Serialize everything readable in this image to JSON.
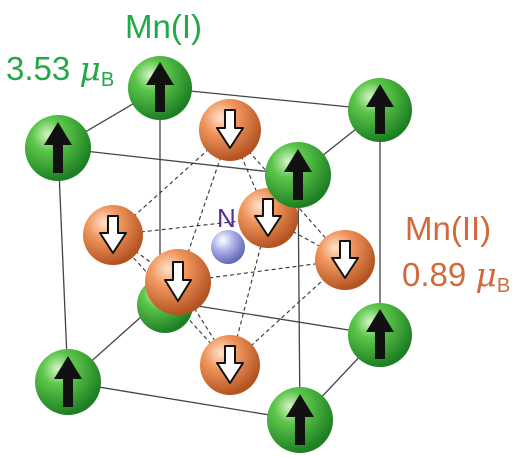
{
  "labels": {
    "mn1_name": "Mn(I)",
    "mn1_moment_value": "3.53",
    "mn1_moment_symbol": "μ",
    "mn1_moment_sub": "B",
    "mn2_name": "Mn(II)",
    "mn2_moment_value": "0.89",
    "mn2_moment_symbol": "μ",
    "mn2_moment_sub": "B",
    "n_atom": "N"
  },
  "colors": {
    "mn1": "#2fae3c",
    "mn2": "#e8864e",
    "n": "#8f93d6",
    "mn1_text": "#21a945",
    "mn2_text": "#d06a3a",
    "n_text": "#5a2a9a"
  },
  "atoms": {
    "corner_mn1_spin": "up",
    "face_mn2_spin": "down",
    "center": "N"
  }
}
